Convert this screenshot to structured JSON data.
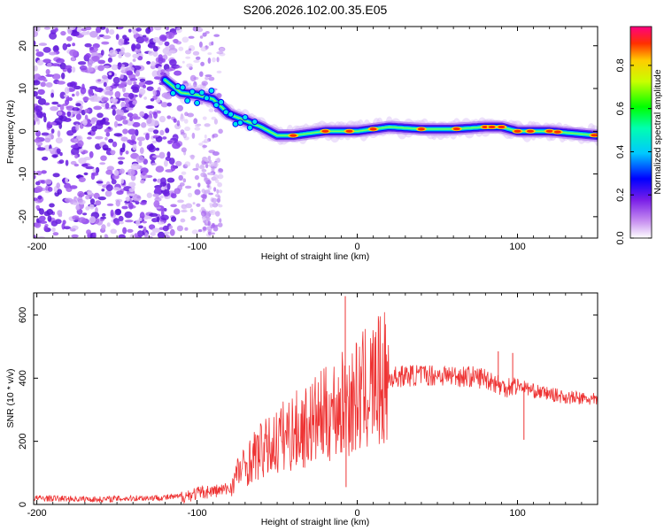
{
  "title": "S206.2026.102.00.35.E05",
  "chart_data": [
    {
      "type": "heatmap",
      "name": "spectrogram",
      "xlabel": "Height of straight line (km)",
      "ylabel": "Frequency (Hz)",
      "xlim": [
        -202,
        150
      ],
      "ylim": [
        -25,
        24.5
      ],
      "xticks": [
        -200,
        -100,
        0,
        100
      ],
      "xtick_labels": [
        "-200",
        "-100",
        "0",
        "100"
      ],
      "yticks": [
        -20,
        -10,
        0,
        10,
        20
      ],
      "ytick_labels": [
        "-20",
        "-10",
        "0",
        "10",
        "20"
      ],
      "ridge": {
        "x": [
          -120,
          -110,
          -100,
          -90,
          -80,
          -70,
          -60,
          -50,
          -40,
          -30,
          -20,
          -10,
          0,
          10,
          20,
          40,
          60,
          80,
          90,
          100,
          120,
          150
        ],
        "y": [
          12,
          9,
          8.5,
          7.5,
          4,
          2.5,
          1,
          -1,
          -1,
          -0.5,
          0,
          0,
          0,
          0.5,
          1,
          0.5,
          0.5,
          1,
          1,
          0,
          0,
          -1
        ]
      },
      "colorbar": {
        "label": "Normalized spectral amplitude",
        "range": [
          0,
          0.98
        ],
        "ticks": [
          0,
          0.2,
          0.4,
          0.6,
          0.8
        ],
        "tick_labels": [
          "0.0",
          "0.2",
          "0.4",
          "0.6",
          "0.8"
        ]
      }
    },
    {
      "type": "line",
      "name": "snr",
      "xlabel": "Height of straight line (km)",
      "ylabel": "SNR (10 * v/v)",
      "xlim": [
        -202,
        150
      ],
      "ylim": [
        0,
        670
      ],
      "xticks": [
        -200,
        -100,
        0,
        100
      ],
      "xtick_labels": [
        "-200",
        "-100",
        "0",
        "100"
      ],
      "yticks": [
        0,
        200,
        400,
        600
      ],
      "ytick_labels": [
        "0",
        "200",
        "400",
        "600"
      ],
      "color": "#ee3333",
      "series": [
        {
          "name": "SNR",
          "x": [
            -202,
            -180,
            -160,
            -140,
            -120,
            -110,
            -100,
            -95,
            -90,
            -85,
            -80,
            -78,
            -75,
            -70,
            -65,
            -60,
            -55,
            -50,
            -45,
            -40,
            -35,
            -30,
            -25,
            -20,
            -15,
            -10,
            -8,
            -6,
            -5,
            0,
            5,
            10,
            15,
            20,
            25,
            30,
            40,
            50,
            60,
            70,
            80,
            85,
            88,
            90,
            95,
            100,
            105,
            110,
            120,
            130,
            140,
            150
          ],
          "y": [
            20,
            18,
            16,
            20,
            22,
            25,
            35,
            40,
            42,
            45,
            50,
            60,
            100,
            120,
            150,
            170,
            180,
            200,
            220,
            230,
            240,
            250,
            270,
            280,
            300,
            310,
            320,
            330,
            320,
            340,
            360,
            380,
            390,
            400,
            405,
            408,
            410,
            410,
            408,
            405,
            400,
            390,
            380,
            370,
            375,
            380,
            370,
            360,
            350,
            340,
            335,
            330
          ]
        }
      ],
      "spikes": [
        {
          "x": -7.5,
          "y": 660
        },
        {
          "x": -7.0,
          "y": 55
        },
        {
          "x": 88,
          "y": 485
        },
        {
          "x": 97,
          "y": 480
        },
        {
          "x": 104,
          "y": 205
        }
      ]
    }
  ]
}
